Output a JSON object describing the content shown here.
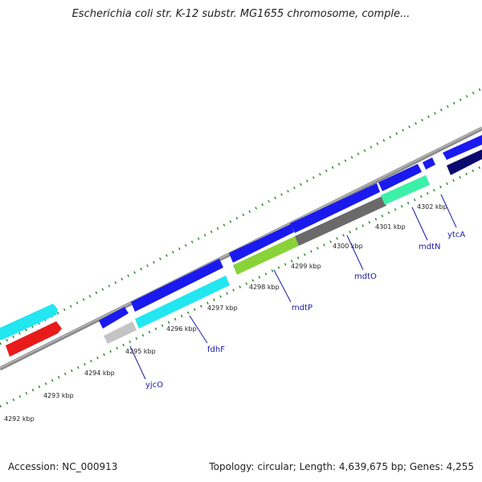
{
  "title": "Escherichia coli str. K-12 substr. MG1655 chromosome, comple...",
  "footer": {
    "accession": "Accession: NC_000913",
    "summary": "Topology: circular; Length: 4,639,675 bp; Genes: 4,255"
  },
  "colors": {
    "background": "#ffffff",
    "backbone": "#8c8c8c",
    "tick": "#2e8b2e",
    "gene_label": "#1a1aa8",
    "forward_cds": "#1a1aee",
    "forward_cds_dark": "#0c0c8a",
    "cyan_cds": "#22e6f0",
    "red_cds": "#e81a1a",
    "light_gray_cds": "#c4c4c4",
    "green_cds": "#8ad23a",
    "dark_gray_cds": "#6a6a6a",
    "aqua_green_cds": "#3cf0a8",
    "navy_cds": "#0a0a6e"
  },
  "scale": {
    "unit": "kbp",
    "ticks": [
      {
        "label": "4292 kbp"
      },
      {
        "label": "4293 kbp"
      },
      {
        "label": "4294 kbp"
      },
      {
        "label": "4295 kbp"
      },
      {
        "label": "4296 kbp"
      },
      {
        "label": "4297 kbp"
      },
      {
        "label": "4298 kbp"
      },
      {
        "label": "4299 kbp"
      },
      {
        "label": "4300 kbp"
      },
      {
        "label": "4301 kbp"
      },
      {
        "label": "4302 kbp"
      }
    ]
  },
  "genes": [
    {
      "name": "yjcO"
    },
    {
      "name": "fdhF"
    },
    {
      "name": "mdtP"
    },
    {
      "name": "mdtO"
    },
    {
      "name": "mdtN"
    },
    {
      "name": "ytcA"
    }
  ]
}
